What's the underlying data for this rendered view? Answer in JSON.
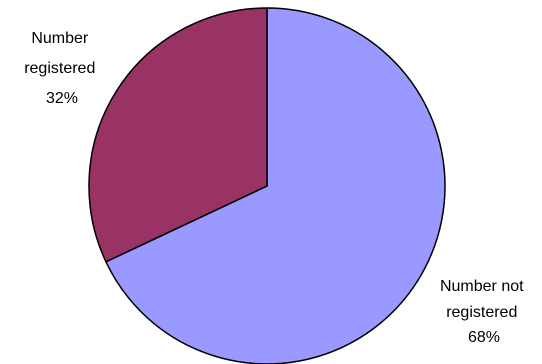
{
  "chart_data": {
    "type": "pie",
    "title": "",
    "slices": [
      {
        "label_lines": [
          "Number not",
          "registered"
        ],
        "percent_label": "68%",
        "value": 68,
        "color": "#9999ff"
      },
      {
        "label_lines": [
          "Number",
          "registered"
        ],
        "percent_label": "32%",
        "value": 32,
        "color": "#993366"
      }
    ],
    "start_angle_deg": 0,
    "direction": "clockwise",
    "outline_color": "#000000",
    "legend": "none"
  }
}
